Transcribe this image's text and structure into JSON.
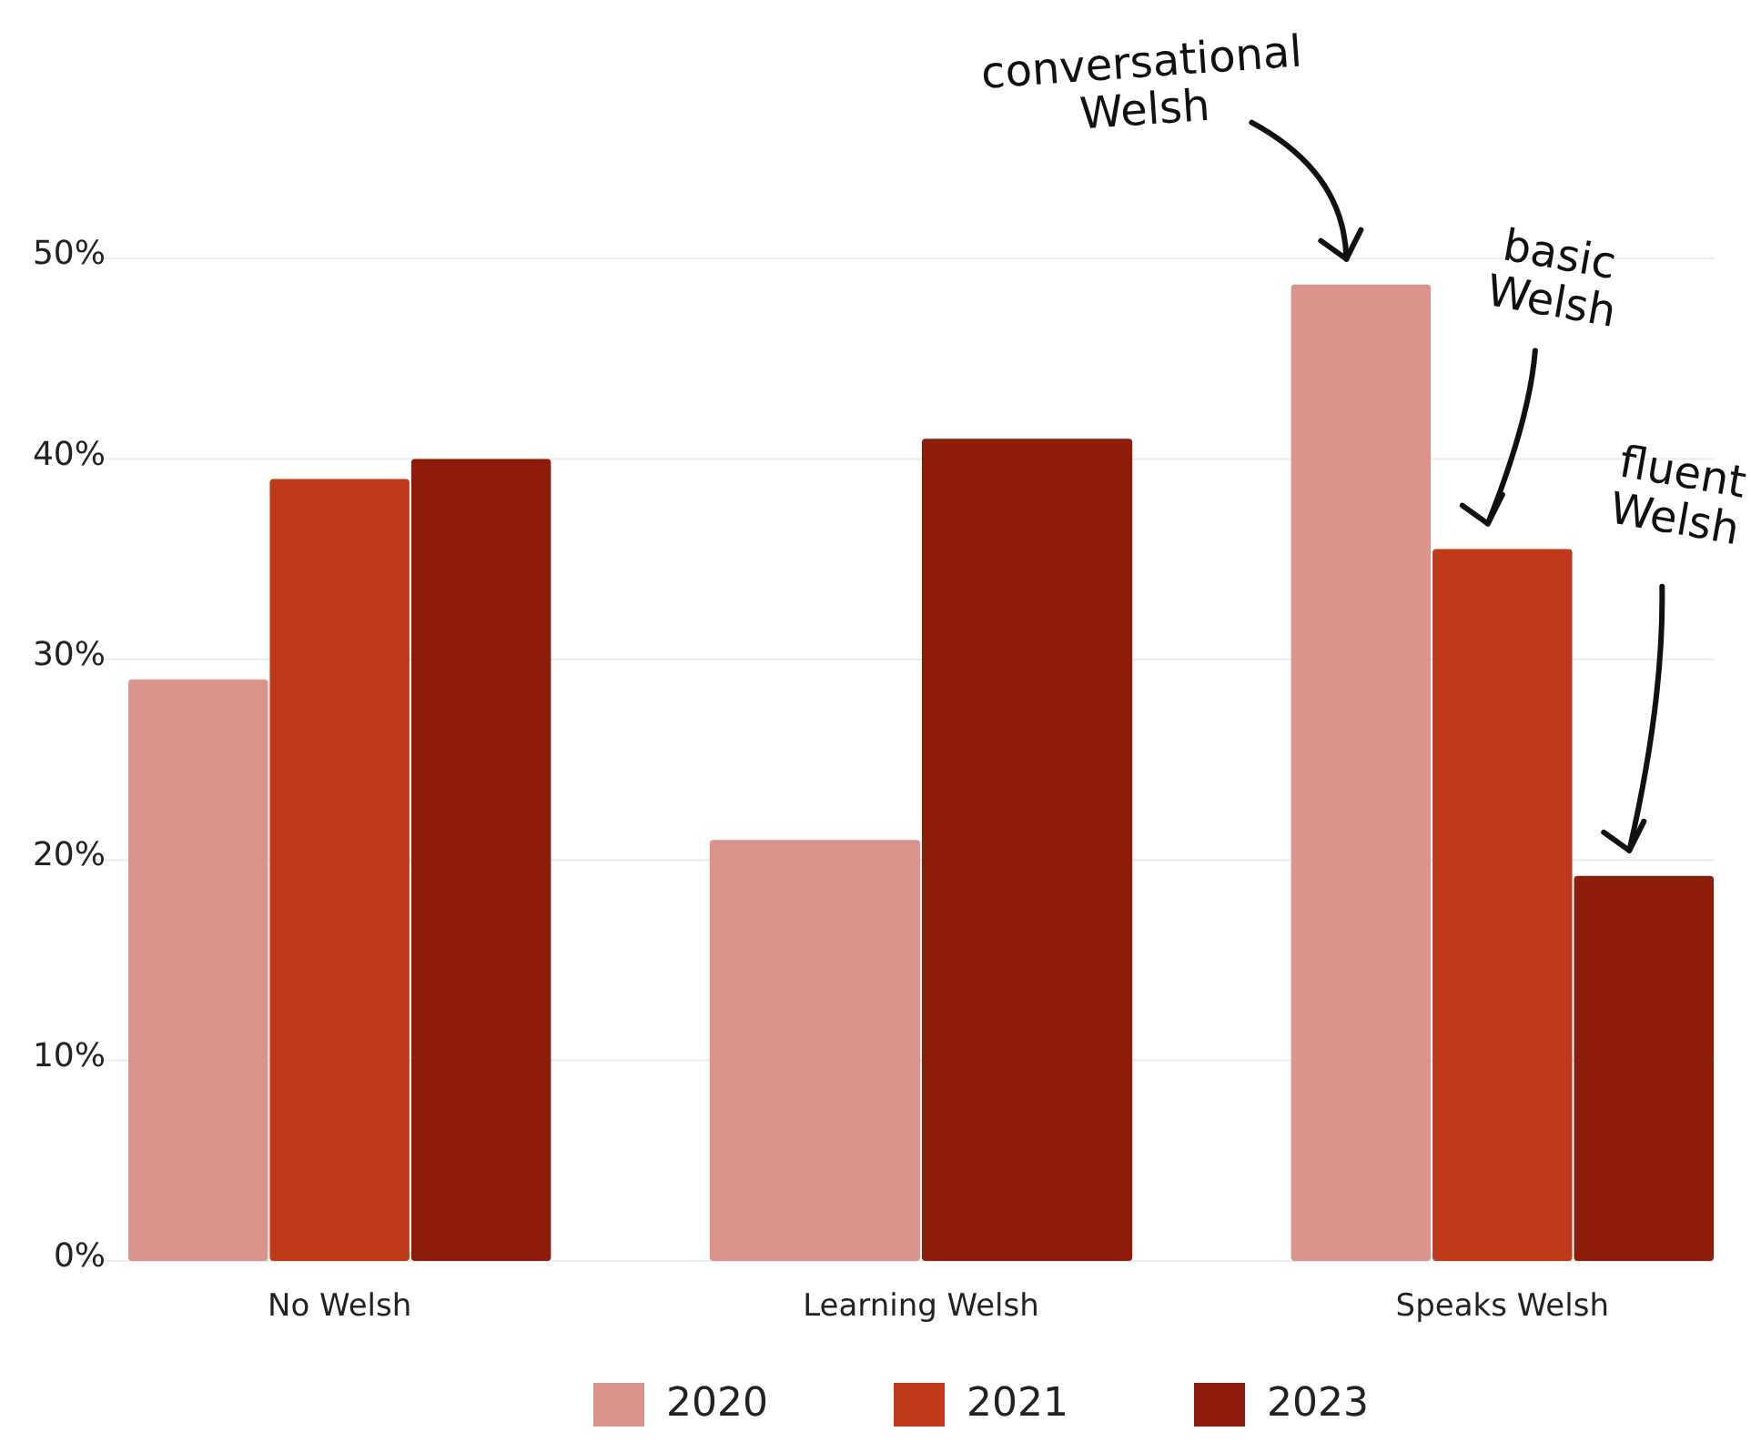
{
  "chart_data": {
    "type": "bar",
    "categories": [
      "No Welsh",
      "Learning Welsh",
      "Speaks Welsh"
    ],
    "series": [
      {
        "name": "2020",
        "color": "#d9948c",
        "values": [
          29,
          21,
          48.7
        ]
      },
      {
        "name": "2021",
        "color": "#bf391b",
        "values": [
          39,
          null,
          35.5
        ]
      },
      {
        "name": "2023",
        "color": "#8e1c0b",
        "values": [
          40,
          41,
          19.2
        ]
      }
    ],
    "ylim": [
      0,
      50
    ],
    "yticks": [
      {
        "value": 0,
        "label": "0%"
      },
      {
        "value": 10,
        "label": "10%"
      },
      {
        "value": 20,
        "label": "20%"
      },
      {
        "value": 30,
        "label": "30%"
      },
      {
        "value": 40,
        "label": "40%"
      },
      {
        "value": 50,
        "label": "50%"
      }
    ],
    "grid": "y",
    "legend": "bottom",
    "annotations": [
      "conversational\nWelsh",
      "basic\nWelsh",
      "fluent\nWelsh"
    ]
  }
}
